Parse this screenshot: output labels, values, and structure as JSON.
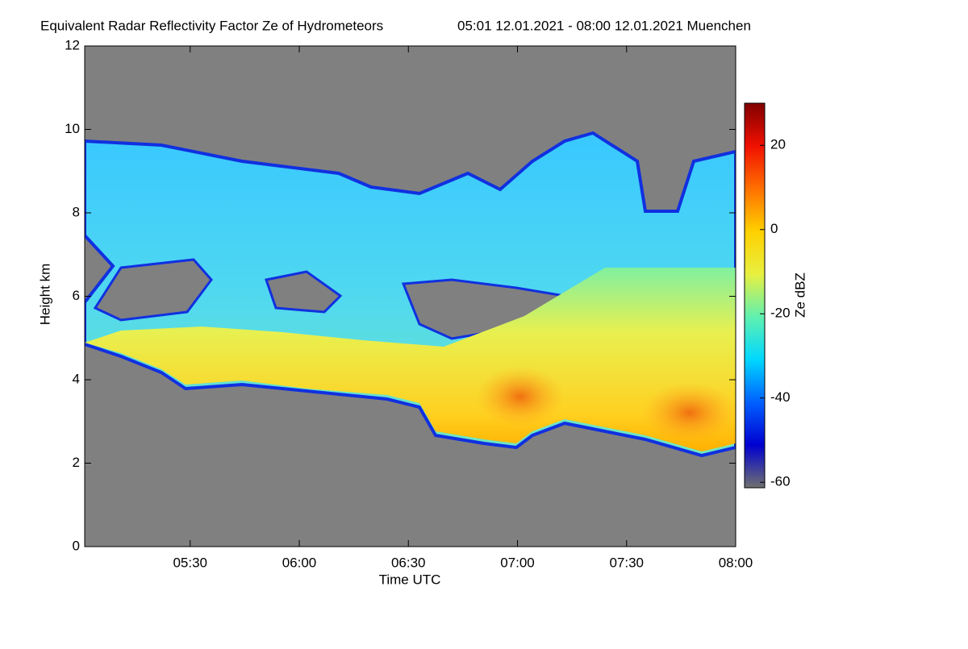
{
  "chart_data": {
    "type": "heatmap",
    "title": "Equivalent Radar Reflectivity Factor Ze of Hydrometeors",
    "subtitle": "05:01 12.01.2021 - 08:00 12.01.2021 Muenchen",
    "x_label": "Time UTC",
    "y_label": "Height km",
    "xlim": [
      5.0167,
      8.0
    ],
    "xticks": [
      {
        "value": 5.5,
        "label": "05:30"
      },
      {
        "value": 6.0,
        "label": "06:00"
      },
      {
        "value": 6.5,
        "label": "06:30"
      },
      {
        "value": 7.0,
        "label": "07:00"
      },
      {
        "value": 7.5,
        "label": "07:30"
      },
      {
        "value": 8.0,
        "label": "08:00"
      }
    ],
    "ylim": [
      0,
      12
    ],
    "yticks": [
      0,
      2,
      4,
      6,
      8,
      10,
      12
    ],
    "colorbar_label": "Ze dBZ",
    "clim": [
      -61.3,
      30
    ],
    "cticks": [
      -60,
      -40,
      -20,
      0,
      20
    ],
    "colorscale": [
      "#707070",
      "#0000d0",
      "#0060ff",
      "#00d8ff",
      "#60f0b0",
      "#e8f040",
      "#ffd000",
      "#ff7000",
      "#f01000",
      "#800000"
    ],
    "background": "#808080"
  }
}
